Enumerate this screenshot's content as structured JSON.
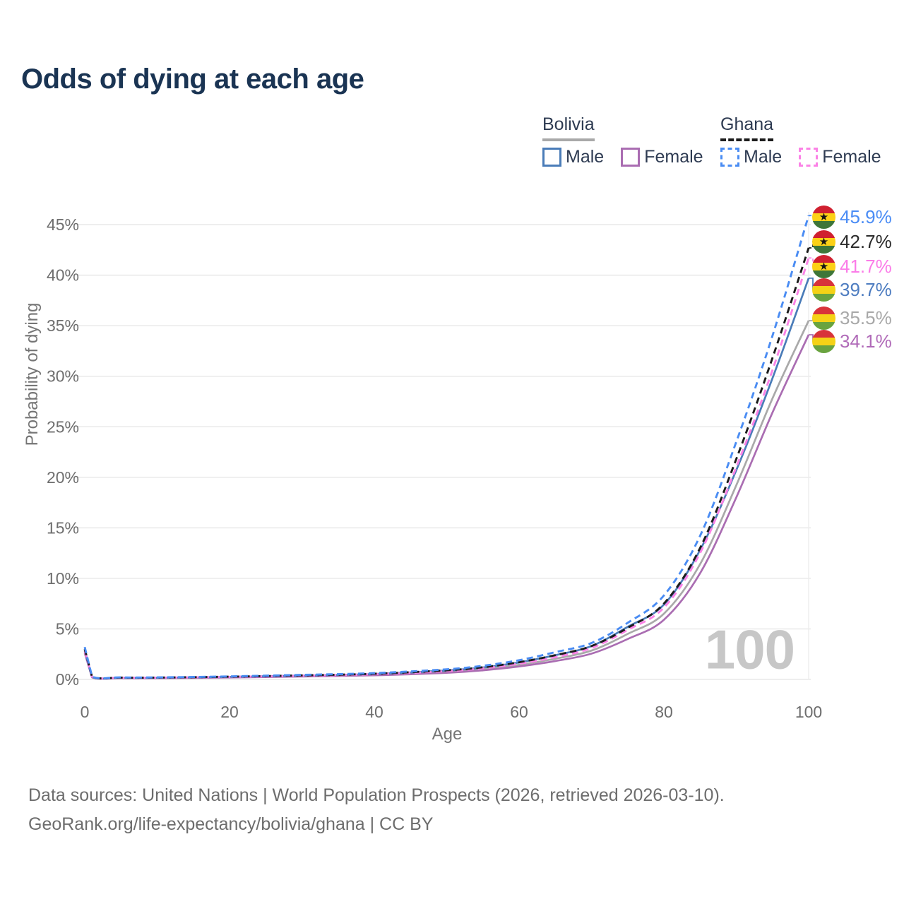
{
  "title": "Odds of dying at each age",
  "legend": {
    "groups": [
      {
        "country": "Bolivia",
        "line_style": "solid",
        "items": [
          {
            "label": "Male"
          },
          {
            "label": "Female"
          }
        ]
      },
      {
        "country": "Ghana",
        "line_style": "dashed",
        "items": [
          {
            "label": "Male"
          },
          {
            "label": "Female"
          }
        ]
      }
    ]
  },
  "chart_data": {
    "type": "line",
    "title": "Odds of dying at each age",
    "xlabel": "Age",
    "ylabel": "Probability of dying",
    "xlim": [
      0,
      100
    ],
    "ylim_percent": [
      0,
      47
    ],
    "x_ticks": [
      0,
      20,
      40,
      60,
      80,
      100
    ],
    "y_ticks_percent": [
      0,
      5,
      10,
      15,
      20,
      25,
      30,
      35,
      40,
      45
    ],
    "grid": "horizontal",
    "legend_position": "top-right",
    "hover_age_watermark": "100",
    "ages": [
      0,
      1,
      5,
      10,
      20,
      30,
      40,
      50,
      55,
      60,
      65,
      70,
      75,
      80,
      85,
      90,
      95,
      100
    ],
    "series": [
      {
        "name": "Ghana Male",
        "country": "Ghana",
        "sex": "male",
        "color": "#4a8cf3",
        "dashed": true,
        "flag": "ghana",
        "end_label": "45.9%",
        "end_value_percent": 45.9,
        "label_color": "#4a8cf5",
        "values_percent": [
          3.2,
          0.3,
          0.2,
          0.2,
          0.3,
          0.45,
          0.62,
          1.0,
          1.35,
          1.9,
          2.7,
          3.6,
          5.6,
          8.3,
          14.2,
          23.5,
          34.0,
          45.9
        ]
      },
      {
        "name": "Ghana",
        "country": "Ghana",
        "sex": "both",
        "color": "#1c1c1c",
        "dashed": true,
        "flag": "ghana",
        "end_label": "42.7%",
        "end_value_percent": 42.7,
        "label_color": "#2b2b2b",
        "values_percent": [
          3.0,
          0.28,
          0.18,
          0.18,
          0.27,
          0.4,
          0.56,
          0.9,
          1.2,
          1.7,
          2.4,
          3.3,
          5.1,
          7.5,
          13.0,
          21.8,
          31.8,
          42.7
        ]
      },
      {
        "name": "Ghana Female",
        "country": "Ghana",
        "sex": "female",
        "color": "#fb82e6",
        "dashed": true,
        "flag": "ghana",
        "end_label": "41.7%",
        "end_value_percent": 41.7,
        "label_color": "#fb7ce8",
        "values_percent": [
          2.8,
          0.26,
          0.17,
          0.17,
          0.25,
          0.36,
          0.51,
          0.82,
          1.1,
          1.55,
          2.2,
          3.1,
          4.9,
          7.1,
          12.5,
          21.0,
          30.6,
          41.7
        ]
      },
      {
        "name": "Bolivia Male",
        "country": "Bolivia",
        "sex": "male",
        "color": "#4a7cb8",
        "dashed": false,
        "flag": "bolivia",
        "end_label": "39.7%",
        "end_value_percent": 39.7,
        "label_color": "#4d7cc0",
        "values_percent": [
          2.9,
          0.26,
          0.16,
          0.16,
          0.26,
          0.38,
          0.54,
          0.88,
          1.18,
          1.68,
          2.4,
          3.3,
          5.2,
          7.4,
          12.8,
          20.7,
          29.8,
          39.7
        ]
      },
      {
        "name": "Bolivia",
        "country": "Bolivia",
        "sex": "both",
        "color": "#a9a9a9",
        "dashed": false,
        "flag": "bolivia",
        "end_label": "35.5%",
        "end_value_percent": 35.5,
        "label_color": "#a8a8a8",
        "values_percent": [
          2.7,
          0.23,
          0.14,
          0.14,
          0.22,
          0.33,
          0.47,
          0.76,
          1.02,
          1.45,
          2.05,
          2.85,
          4.5,
          6.5,
          11.4,
          19.2,
          27.8,
          35.5
        ]
      },
      {
        "name": "Bolivia Female",
        "country": "Bolivia",
        "sex": "female",
        "color": "#aa6db2",
        "dashed": false,
        "flag": "bolivia",
        "end_label": "34.1%",
        "end_value_percent": 34.1,
        "label_color": "#b06ab8",
        "values_percent": [
          2.6,
          0.21,
          0.13,
          0.13,
          0.19,
          0.29,
          0.41,
          0.66,
          0.9,
          1.28,
          1.82,
          2.55,
          4.0,
          5.9,
          10.5,
          18.0,
          26.4,
          34.1
        ]
      }
    ],
    "flag_colors": {
      "ghana": {
        "stripes": [
          "#d02030",
          "#fcd116",
          "#3e7639"
        ],
        "star": "★"
      },
      "bolivia": {
        "stripes": [
          "#d8333a",
          "#f5d216",
          "#69a33f"
        ],
        "star": null
      }
    }
  },
  "footer": {
    "line1": "Data sources: United Nations | World Population Prospects (2026, retrieved 2026-03-10).",
    "line2": "GeoRank.org/life-expectancy/bolivia/ghana | CC BY"
  }
}
